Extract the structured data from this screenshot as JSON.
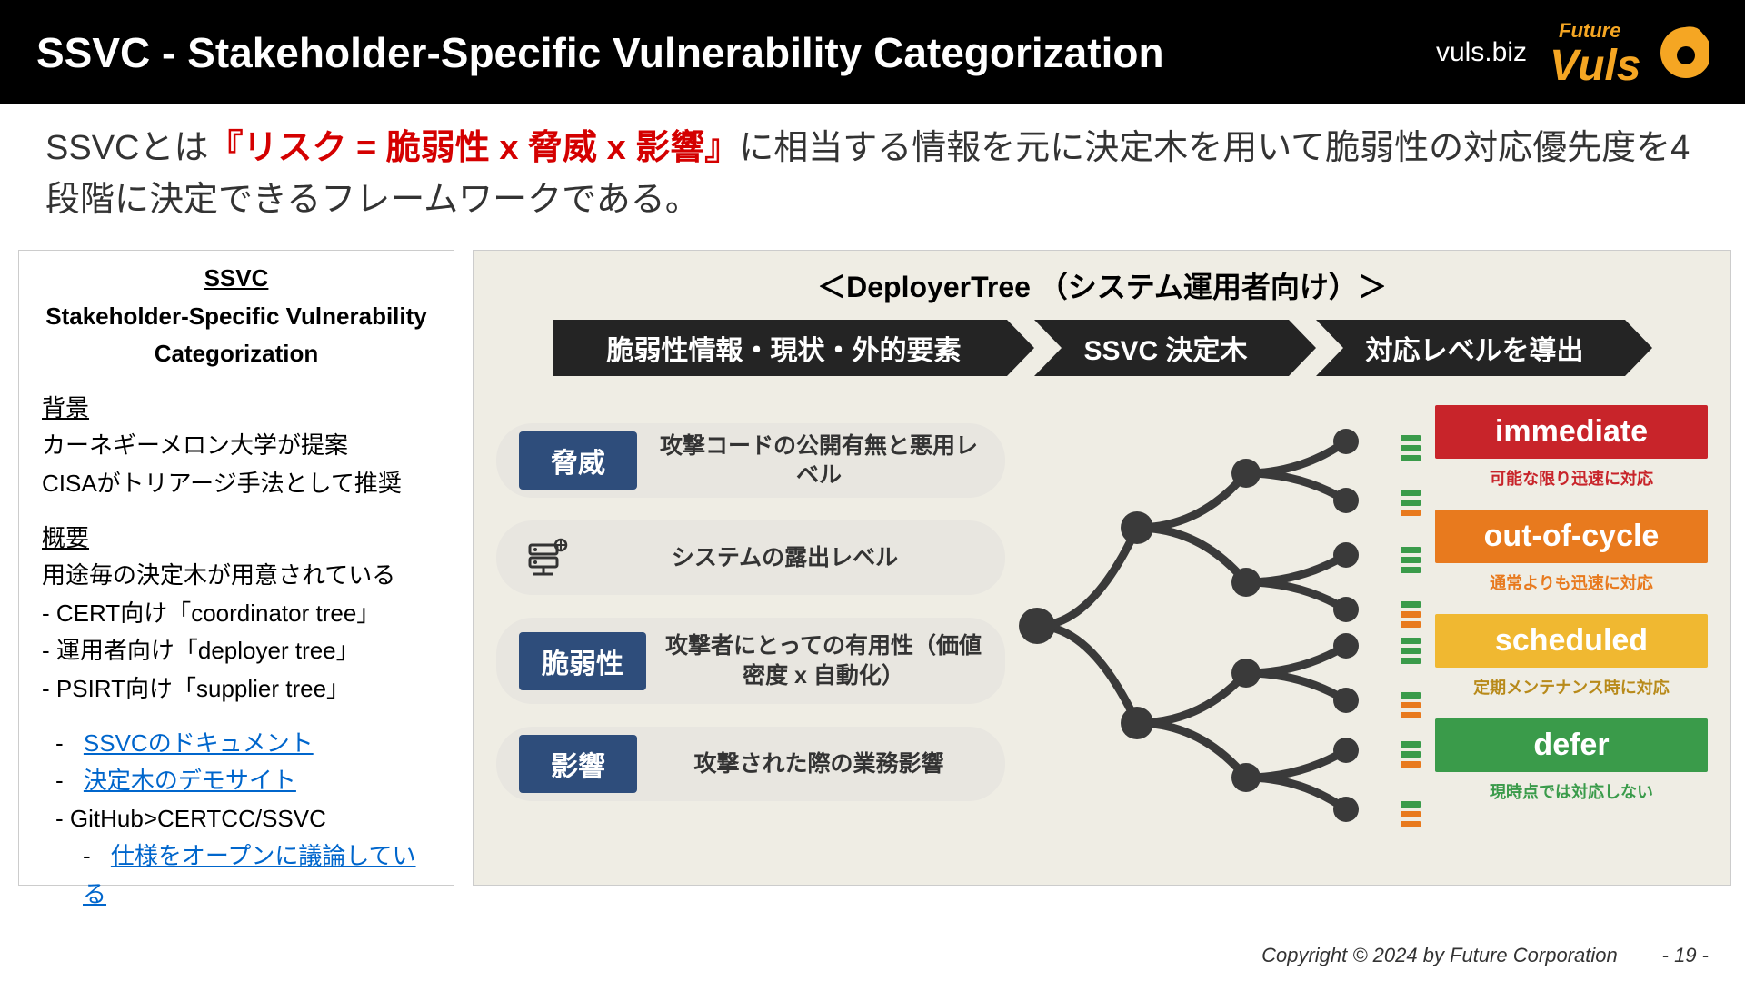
{
  "header": {
    "title": "SSVC - Stakeholder-Specific Vulnerability Categorization",
    "url": "vuls.biz",
    "logo_text_top": "Future",
    "logo_text_main": "Vuls"
  },
  "subtitle": {
    "prefix": "SSVCとは",
    "red": "『リスク = 脆弱性 x 脅威 x 影響』",
    "suffix": "に相当する情報を元に決定木を用いて脆弱性の対応優先度を4段階に決定できるフレームワークである。"
  },
  "sidebar": {
    "t1": "SSVC",
    "t2a": "Stakeholder-Specific Vulnerability",
    "t2b": "Categorization",
    "h_bg": "背景",
    "bg1": "カーネギーメロン大学が提案",
    "bg2": "CISAがトリアージ手法として推奨",
    "h_ov": "概要",
    "ov1": "用途毎の決定木が用意されている",
    "ov2": "- CERT向け「coordinator tree」",
    "ov3": "- 運用者向け「deployer tree」",
    "ov4": "- PSIRT向け「supplier tree」",
    "l1p": "- ",
    "l1": "SSVCのドキュメント",
    "l2p": "- ",
    "l2": "決定木のデモサイト",
    "l3": "- GitHub>CERTCC/SSVC",
    "l4p": "- ",
    "l4": "仕様をオープンに議論している"
  },
  "diagram": {
    "title": "＜DeployerTree （システム運用者向け）＞",
    "ribbon": {
      "s1": "脆弱性情報・現状・外的要素",
      "s2": "SSVC 決定木",
      "s3": "対応レベルを導出"
    },
    "inputs": {
      "r1_tag": "脅威",
      "r1_txt": "攻撃コードの公開有無と悪用レベル",
      "r2_txt": "システムの露出レベル",
      "r3_tag": "脆弱性",
      "r3_txt": "攻撃者にとっての有用性（価値密度 x 自動化）",
      "r4_tag": "影響",
      "r4_txt": "攻撃された際の業務影響"
    },
    "outputs": [
      {
        "label": "immediate",
        "sub": "可能な限り迅速に対応",
        "bg": "#c8242a",
        "sub_color": "#c8242a"
      },
      {
        "label": "out-of-cycle",
        "sub": "通常よりも迅速に対応",
        "bg": "#e87a1e",
        "sub_color": "#e87a1e"
      },
      {
        "label": "scheduled",
        "sub": "定期メンテナンス時に対応",
        "bg": "#f0b831",
        "sub_color": "#b88a1a"
      },
      {
        "label": "defer",
        "sub": "現時点では対応しない",
        "bg": "#3a9b4a",
        "sub_color": "#3a9b4a"
      }
    ],
    "leaf_colors": {
      "g": "#3a9b4a",
      "o": "#e87a1e",
      "groups": [
        [
          "g",
          "g",
          "g"
        ],
        [
          "g",
          "g",
          "o"
        ],
        [
          "g",
          "g",
          "g"
        ],
        [
          "g",
          "o",
          "o"
        ],
        [
          "g",
          "g",
          "g"
        ],
        [
          "g",
          "o",
          "o"
        ],
        [
          "g",
          "g",
          "o"
        ],
        [
          "g",
          "o",
          "o"
        ]
      ]
    },
    "tree_color": "#3a3a3a"
  },
  "footer": {
    "copyright": "Copyright © 2024 by Future  Corporation",
    "page": "- 19 -"
  }
}
